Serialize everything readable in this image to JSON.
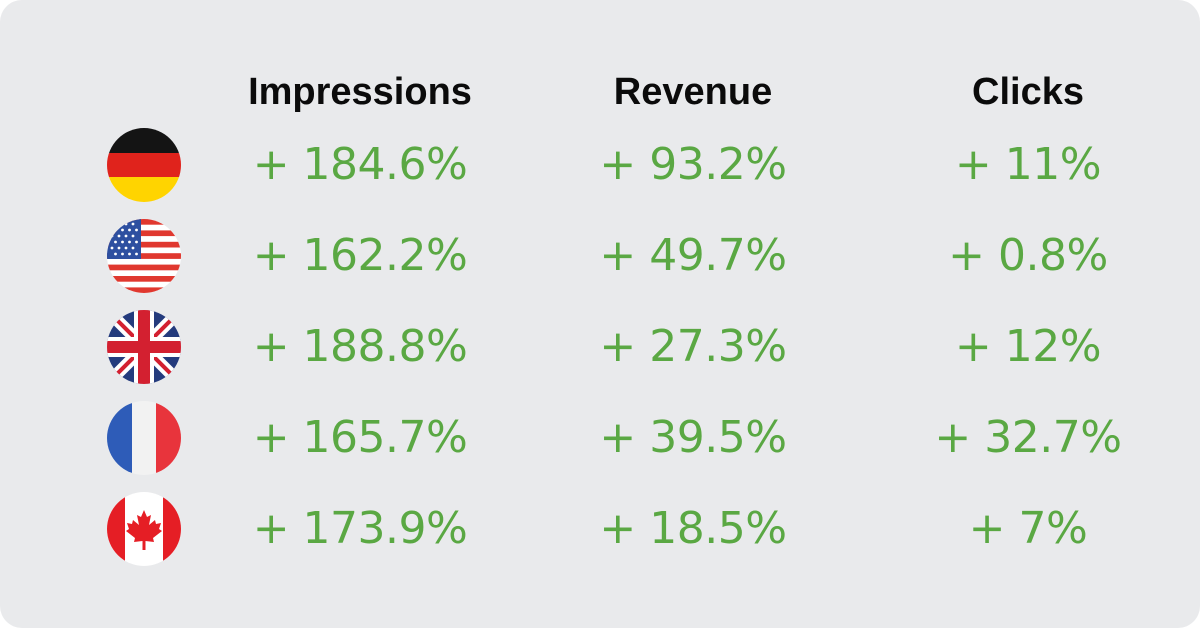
{
  "headers": {
    "impressions": "Impressions",
    "revenue": "Revenue",
    "clicks": "Clicks"
  },
  "colors": {
    "background": "#e9eaec",
    "positive": "#5aa843",
    "header_text": "#0b0b0b"
  },
  "rows": [
    {
      "flag": "germany-flag-icon",
      "impressions": "+ 184.6%",
      "revenue": "+ 93.2%",
      "clicks": "+ 11%"
    },
    {
      "flag": "usa-flag-icon",
      "impressions": "+ 162.2%",
      "revenue": "+ 49.7%",
      "clicks": "+ 0.8%"
    },
    {
      "flag": "uk-flag-icon",
      "impressions": "+ 188.8%",
      "revenue": "+ 27.3%",
      "clicks": "+ 12%"
    },
    {
      "flag": "france-flag-icon",
      "impressions": "+ 165.7%",
      "revenue": "+ 39.5%",
      "clicks": "+ 32.7%"
    },
    {
      "flag": "canada-flag-icon",
      "impressions": "+ 173.9%",
      "revenue": "+ 18.5%",
      "clicks": "+ 7%"
    }
  ]
}
